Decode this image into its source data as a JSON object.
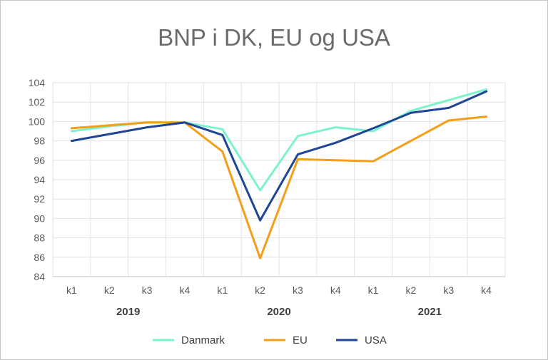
{
  "chart_data": {
    "type": "line",
    "title": "BNP i DK, EU og USA",
    "categories": [
      "k1",
      "k2",
      "k3",
      "k4",
      "k1",
      "k2",
      "k3",
      "k4",
      "k1",
      "k2",
      "k3",
      "k4"
    ],
    "groups": [
      {
        "label": "2019"
      },
      {
        "label": "2020"
      },
      {
        "label": "2021"
      }
    ],
    "ylim": [
      84,
      104
    ],
    "yticks": [
      84,
      86,
      88,
      90,
      92,
      94,
      96,
      98,
      100,
      102,
      104
    ],
    "grid": true,
    "legend_position": "bottom",
    "series": [
      {
        "name": "Danmark",
        "color": "#7cf2cd",
        "values": [
          99.0,
          99.5,
          99.9,
          99.9,
          99.2,
          92.9,
          98.5,
          99.4,
          99.0,
          101.1,
          102.2,
          103.3
        ]
      },
      {
        "name": "EU",
        "color": "#f59e17",
        "values": [
          99.3,
          99.6,
          99.9,
          99.9,
          96.9,
          85.9,
          96.1,
          96.0,
          95.9,
          98.0,
          100.1,
          100.5
        ]
      },
      {
        "name": "USA",
        "color": "#1f4594",
        "values": [
          98.0,
          98.7,
          99.4,
          99.9,
          98.6,
          89.8,
          96.6,
          97.8,
          99.3,
          100.9,
          101.4,
          103.1
        ]
      }
    ]
  }
}
